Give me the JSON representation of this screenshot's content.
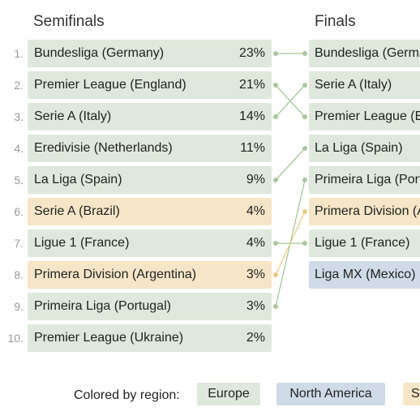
{
  "chart_data": {
    "type": "bracket",
    "semifinals_title": "Semifinals",
    "finals_title": "Finals",
    "semifinals": [
      {
        "rank": "1.",
        "name": "Bundesliga (Germany)",
        "pct": "23%",
        "value": 23,
        "region": "Europe"
      },
      {
        "rank": "2.",
        "name": "Premier League (England)",
        "pct": "21%",
        "value": 21,
        "region": "Europe"
      },
      {
        "rank": "3.",
        "name": "Serie A (Italy)",
        "pct": "14%",
        "value": 14,
        "region": "Europe"
      },
      {
        "rank": "4.",
        "name": "Eredivisie (Netherlands)",
        "pct": "11%",
        "value": 11,
        "region": "Europe"
      },
      {
        "rank": "5.",
        "name": "La Liga (Spain)",
        "pct": "9%",
        "value": 9,
        "region": "Europe"
      },
      {
        "rank": "6.",
        "name": "Serie A (Brazil)",
        "pct": "4%",
        "value": 4,
        "region": "South America"
      },
      {
        "rank": "7.",
        "name": "Ligue 1 (France)",
        "pct": "4%",
        "value": 4,
        "region": "Europe"
      },
      {
        "rank": "8.",
        "name": "Primera Division (Argentina)",
        "pct": "3%",
        "value": 3,
        "region": "South America"
      },
      {
        "rank": "9.",
        "name": "Primeira Liga (Portugal)",
        "pct": "3%",
        "value": 3,
        "region": "Europe"
      },
      {
        "rank": "10.",
        "name": "Premier League (Ukraine)",
        "pct": "2%",
        "value": 2,
        "region": "Europe"
      }
    ],
    "finals": [
      {
        "name": "Bundesliga (Germany)",
        "region": "Europe",
        "from_semi_rank": 1
      },
      {
        "name": "Serie A (Italy)",
        "region": "Europe",
        "from_semi_rank": 3
      },
      {
        "name": "Premier League (England)",
        "region": "Europe",
        "from_semi_rank": 2
      },
      {
        "name": "La Liga (Spain)",
        "region": "Europe",
        "from_semi_rank": 5
      },
      {
        "name": "Primeira Liga (Portugal)",
        "region": "Europe",
        "from_semi_rank": 9
      },
      {
        "name": "Primera Division (Argentina)",
        "region": "South America",
        "from_semi_rank": 8
      },
      {
        "name": "Ligue 1 (France)",
        "region": "Europe",
        "from_semi_rank": 7
      },
      {
        "name": "Liga MX (Mexico)",
        "region": "North America",
        "from_semi_rank": null
      }
    ],
    "legend": {
      "label": "Colored by region:",
      "items": [
        {
          "name": "Europe",
          "color": "#dfe8dc"
        },
        {
          "name": "North America",
          "color": "#cfdbe6"
        },
        {
          "name": "South America",
          "color": "#f6e6c7"
        }
      ]
    },
    "colors": {
      "europe_box": "#dfe8dc",
      "north_america_box": "#cfdbe6",
      "south_america_box": "#f6e6c7",
      "europe_line": "#a9c79c",
      "south_america_line": "#eacb85"
    }
  }
}
